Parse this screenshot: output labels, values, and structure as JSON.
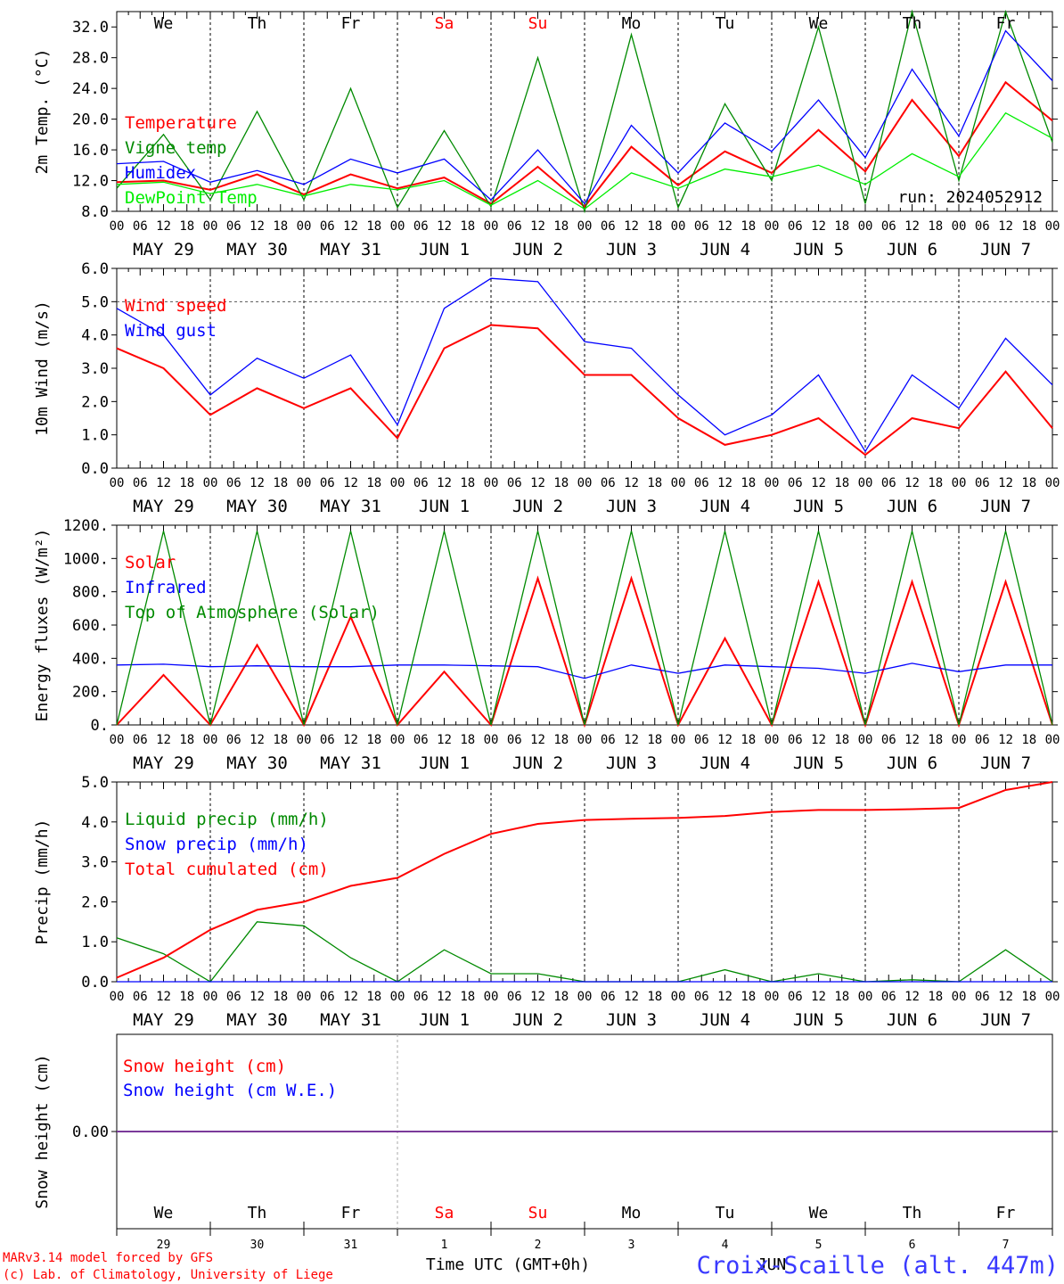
{
  "colors": {
    "red": "#ff0000",
    "green": "#008a00",
    "blue": "#0000ff",
    "lightgreen": "#00ee00",
    "purple": "#7a3a9a",
    "text": "#000000",
    "footer_blue": "#3a3aff"
  },
  "days": {
    "weekdays": [
      "We",
      "Th",
      "Fr",
      "Sa",
      "Su",
      "Mo",
      "Tu",
      "We",
      "Th",
      "Fr"
    ],
    "weekday_colors": [
      "#000000",
      "#000000",
      "#000000",
      "#ff0000",
      "#ff0000",
      "#000000",
      "#000000",
      "#000000",
      "#000000",
      "#000000"
    ],
    "date_labels": [
      "MAY 29",
      "MAY 30",
      "MAY 31",
      "JUN  1",
      "JUN  2",
      "JUN  3",
      "JUN  4",
      "JUN  5",
      "JUN  6",
      "JUN  7"
    ],
    "day_numbers": [
      "29",
      "30",
      "31",
      "1",
      "2",
      "3",
      "4",
      "5",
      "6",
      "7"
    ],
    "hour_ticks": [
      "00",
      "06",
      "12",
      "18"
    ],
    "end_tick": "00"
  },
  "run_label": "run: 2024052912",
  "footer": {
    "model": "MARv3.14 model forced by GFS",
    "credit": "(c) Lab. of Climatology, University of Liege",
    "xlabel": "Time UTC (GMT+0h)",
    "month": "JUN",
    "station": "Croix-Scaille (alt. 447m)"
  },
  "chart_data": [
    {
      "type": "line",
      "ylabel": "2m Temp. (°C)",
      "ylim": [
        8,
        34
      ],
      "yticks": [
        8,
        12,
        16,
        20,
        24,
        28,
        32
      ],
      "ytick_labels": [
        "8.0",
        "12.0",
        "16.0",
        "20.0",
        "24.0",
        "28.0",
        "32.0"
      ],
      "x": [
        0,
        12,
        24,
        36,
        48,
        60,
        72,
        84,
        96,
        108,
        120,
        132,
        144,
        156,
        168,
        180,
        192,
        204,
        216,
        228,
        240
      ],
      "x_unit": "hours since 2024-05-29 00 UTC",
      "series": [
        {
          "name": "Temperature",
          "color": "red",
          "values": [
            11.8,
            12.0,
            10.8,
            12.8,
            10.2,
            12.8,
            11.0,
            12.4,
            9.0,
            13.8,
            8.6,
            16.4,
            11.4,
            15.8,
            13.0,
            18.6,
            13.2,
            22.5,
            15.2,
            24.8,
            19.8
          ]
        },
        {
          "name": "Vigne temp",
          "color": "green",
          "values": [
            11.0,
            18.0,
            9.5,
            21.0,
            9.5,
            24.0,
            8.5,
            18.5,
            8.6,
            28.0,
            8.0,
            31.0,
            8.5,
            22.0,
            12.0,
            32.0,
            9.0,
            36.0,
            12.0,
            36.0,
            17.0
          ]
        },
        {
          "name": "Humidex",
          "color": "blue",
          "values": [
            14.2,
            14.5,
            11.8,
            13.3,
            11.5,
            14.8,
            13.0,
            14.8,
            9.5,
            16.0,
            9.0,
            19.2,
            13.0,
            19.5,
            15.8,
            22.5,
            15.0,
            26.5,
            17.8,
            31.5,
            25.0
          ]
        },
        {
          "name": "DewPoint Temp",
          "color": "lightgreen",
          "values": [
            11.5,
            11.8,
            10.3,
            11.5,
            10.0,
            11.5,
            10.8,
            12.0,
            8.8,
            12.0,
            8.3,
            13.0,
            11.0,
            13.5,
            12.5,
            14.0,
            11.5,
            15.5,
            12.5,
            20.8,
            17.5
          ]
        }
      ]
    },
    {
      "type": "line",
      "ylabel": "10m Wind (m/s)",
      "ylim": [
        0,
        6
      ],
      "yticks": [
        0,
        1,
        2,
        3,
        4,
        5,
        6
      ],
      "ytick_labels": [
        "0.0",
        "1.0",
        "2.0",
        "3.0",
        "4.0",
        "5.0",
        "6.0"
      ],
      "dashed_level": 5.0,
      "x": [
        0,
        12,
        24,
        36,
        48,
        60,
        72,
        84,
        96,
        108,
        120,
        132,
        144,
        156,
        168,
        180,
        192,
        204,
        216,
        228,
        240
      ],
      "x_unit": "hours since 2024-05-29 00 UTC",
      "series": [
        {
          "name": "Wind speed",
          "color": "red",
          "values": [
            3.6,
            3.0,
            1.6,
            2.4,
            1.8,
            2.4,
            0.9,
            3.6,
            4.3,
            4.2,
            2.8,
            2.8,
            1.5,
            0.7,
            1.0,
            1.5,
            0.4,
            1.5,
            1.2,
            2.9,
            1.2
          ]
        },
        {
          "name": "Wind gust",
          "color": "blue",
          "values": [
            4.8,
            4.0,
            2.2,
            3.3,
            2.7,
            3.4,
            1.3,
            4.8,
            5.7,
            5.6,
            3.8,
            3.6,
            2.2,
            1.0,
            1.6,
            2.8,
            0.5,
            2.8,
            1.8,
            3.9,
            2.5
          ]
        }
      ]
    },
    {
      "type": "line",
      "ylabel": "Energy fluxes (W/m²)",
      "ylim": [
        0,
        1200
      ],
      "yticks": [
        0,
        200,
        400,
        600,
        800,
        1000,
        1200
      ],
      "ytick_labels": [
        "0.",
        "200.",
        "400.",
        "600.",
        "800.",
        "1000.",
        "1200."
      ],
      "x": [
        0,
        12,
        24,
        36,
        48,
        60,
        72,
        84,
        96,
        108,
        120,
        132,
        144,
        156,
        168,
        180,
        192,
        204,
        216,
        228,
        240
      ],
      "x_unit": "hours since 2024-05-29 00 UTC",
      "series": [
        {
          "name": "Solar",
          "color": "red",
          "values": [
            0,
            300,
            0,
            480,
            0,
            650,
            0,
            320,
            0,
            880,
            0,
            880,
            0,
            520,
            0,
            860,
            0,
            860,
            0,
            860,
            0
          ]
        },
        {
          "name": "Infrared",
          "color": "blue",
          "values": [
            360,
            365,
            350,
            355,
            350,
            350,
            360,
            360,
            355,
            350,
            280,
            360,
            310,
            360,
            350,
            340,
            310,
            370,
            320,
            360,
            360
          ]
        },
        {
          "name": "Top of Atmosphere (Solar)",
          "color": "green",
          "values": [
            0,
            1165,
            0,
            1165,
            0,
            1165,
            0,
            1165,
            0,
            1165,
            0,
            1165,
            0,
            1165,
            0,
            1165,
            0,
            1165,
            0,
            1165,
            0
          ]
        }
      ]
    },
    {
      "type": "line",
      "ylabel": "Precip (mm/h)",
      "ylim": [
        0,
        5
      ],
      "yticks": [
        0,
        1,
        2,
        3,
        4,
        5
      ],
      "ytick_labels": [
        "0.0",
        "1.0",
        "2.0",
        "3.0",
        "4.0",
        "5.0"
      ],
      "x": [
        0,
        12,
        24,
        36,
        48,
        60,
        72,
        84,
        96,
        108,
        120,
        132,
        144,
        156,
        168,
        180,
        192,
        204,
        216,
        228,
        240
      ],
      "x_unit": "hours since 2024-05-29 00 UTC",
      "series": [
        {
          "name": "Liquid precip (mm/h)",
          "color": "green",
          "values": [
            1.1,
            0.7,
            0.0,
            1.5,
            1.4,
            0.6,
            0.0,
            0.8,
            0.2,
            0.2,
            0.0,
            0.0,
            0.0,
            0.3,
            0.0,
            0.2,
            0.0,
            0.05,
            0.0,
            0.8,
            0.0
          ]
        },
        {
          "name": "Snow precip (mm/h)",
          "color": "blue",
          "values": [
            0,
            0,
            0,
            0,
            0,
            0,
            0,
            0,
            0,
            0,
            0,
            0,
            0,
            0,
            0,
            0,
            0,
            0,
            0,
            0,
            0
          ]
        },
        {
          "name": "Total cumulated (cm)",
          "color": "red",
          "values": [
            0.1,
            0.6,
            1.3,
            1.8,
            2.0,
            2.4,
            2.6,
            3.2,
            3.7,
            3.95,
            4.05,
            4.08,
            4.1,
            4.15,
            4.25,
            4.3,
            4.3,
            4.32,
            4.35,
            4.8,
            5.0
          ]
        }
      ]
    },
    {
      "type": "line",
      "ylabel": "Snow height (cm)",
      "ylim": [
        -1,
        1
      ],
      "yticks": [
        0
      ],
      "ytick_labels": [
        "0.00"
      ],
      "x": [
        0,
        240
      ],
      "x_unit": "hours since 2024-05-29 00 UTC",
      "series": [
        {
          "name": "Snow height (cm)",
          "color": "red",
          "values": [
            0,
            0
          ]
        },
        {
          "name": "Snow height (cm W.E.)",
          "color": "blue",
          "values": [
            0,
            0
          ]
        }
      ]
    }
  ]
}
